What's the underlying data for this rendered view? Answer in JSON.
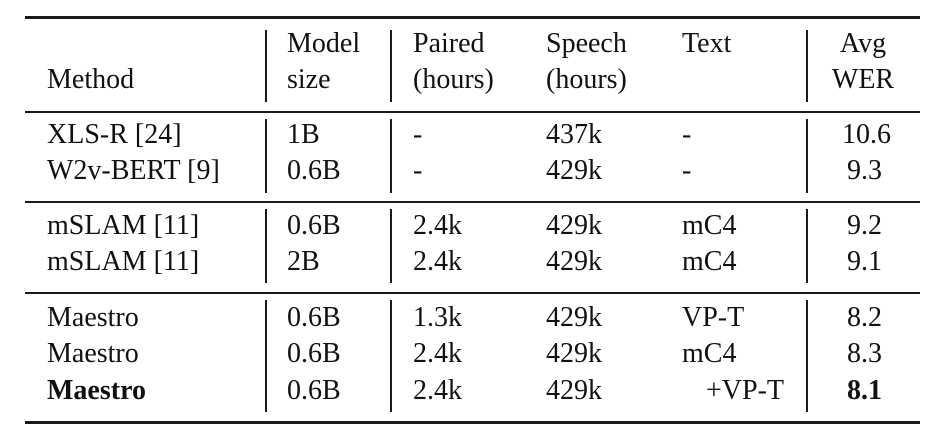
{
  "table": {
    "headers": {
      "method": "Method",
      "model_size": [
        "Model",
        "size"
      ],
      "paired": [
        "Paired",
        "(hours)"
      ],
      "speech": [
        "Speech",
        "(hours)"
      ],
      "text": "Text",
      "avg_wer": [
        "Avg",
        "WER"
      ]
    },
    "groups": [
      {
        "rows": [
          {
            "method": "XLS-R [24]",
            "model_size": "1B",
            "paired": "-",
            "speech": "437k",
            "text": "-",
            "wer": "10.6",
            "bold": false
          },
          {
            "method": "W2v-BERT [9]",
            "model_size": "0.6B",
            "paired": "-",
            "speech": "429k",
            "text": "-",
            "wer": "9.3",
            "bold": false
          }
        ]
      },
      {
        "rows": [
          {
            "method": "mSLAM [11]",
            "model_size": "0.6B",
            "paired": "2.4k",
            "speech": "429k",
            "text": "mC4",
            "wer": "9.2",
            "bold": false
          },
          {
            "method": "mSLAM [11]",
            "model_size": "2B",
            "paired": "2.4k",
            "speech": "429k",
            "text": "mC4",
            "wer": "9.1",
            "bold": false
          }
        ]
      },
      {
        "rows": [
          {
            "method": "Maestro",
            "model_size": "0.6B",
            "paired": "1.3k",
            "speech": "429k",
            "text": "VP-T",
            "wer": "8.2",
            "bold": false
          },
          {
            "method": "Maestro",
            "model_size": "0.6B",
            "paired": "2.4k",
            "speech": "429k",
            "text": "mC4",
            "wer": "8.3",
            "bold": false
          },
          {
            "method": "Maestro",
            "model_size": "0.6B",
            "paired": "2.4k",
            "speech": "429k",
            "text": "+VP-T",
            "wer": "8.1",
            "bold": true
          }
        ]
      }
    ]
  }
}
